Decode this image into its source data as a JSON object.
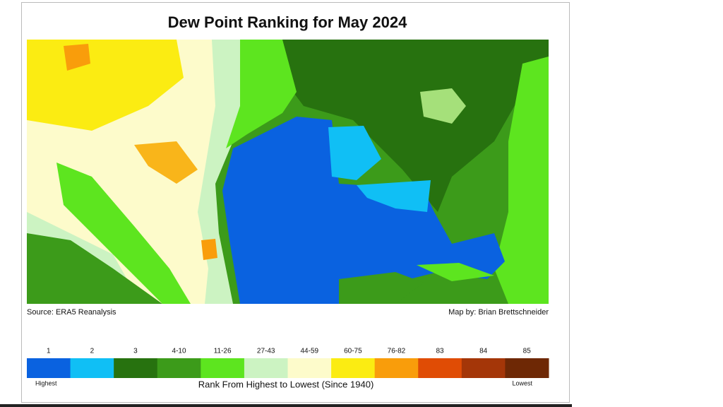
{
  "title": "Dew Point Ranking for May 2024",
  "source": "Source: ERA5 Reanalysis",
  "credit": "Map by: Brian Brettschneider",
  "legend": {
    "items": [
      {
        "label": "1",
        "color": "#0a62e0"
      },
      {
        "label": "2",
        "color": "#10bff5"
      },
      {
        "label": "3",
        "color": "#27720f"
      },
      {
        "label": "4-10",
        "color": "#3c9b1a"
      },
      {
        "label": "11-26",
        "color": "#5de51f"
      },
      {
        "label": "27-43",
        "color": "#ccf3c2"
      },
      {
        "label": "44-59",
        "color": "#fdfbcb"
      },
      {
        "label": "60-75",
        "color": "#fbec12"
      },
      {
        "label": "76-82",
        "color": "#f99d0b"
      },
      {
        "label": "83",
        "color": "#e04c05"
      },
      {
        "label": "84",
        "color": "#a43608"
      },
      {
        "label": "85",
        "color": "#6e2805"
      }
    ],
    "low_label": "Highest",
    "high_label": "Lowest",
    "caption": "Rank From Highest to Lowest (Since 1940)"
  }
}
